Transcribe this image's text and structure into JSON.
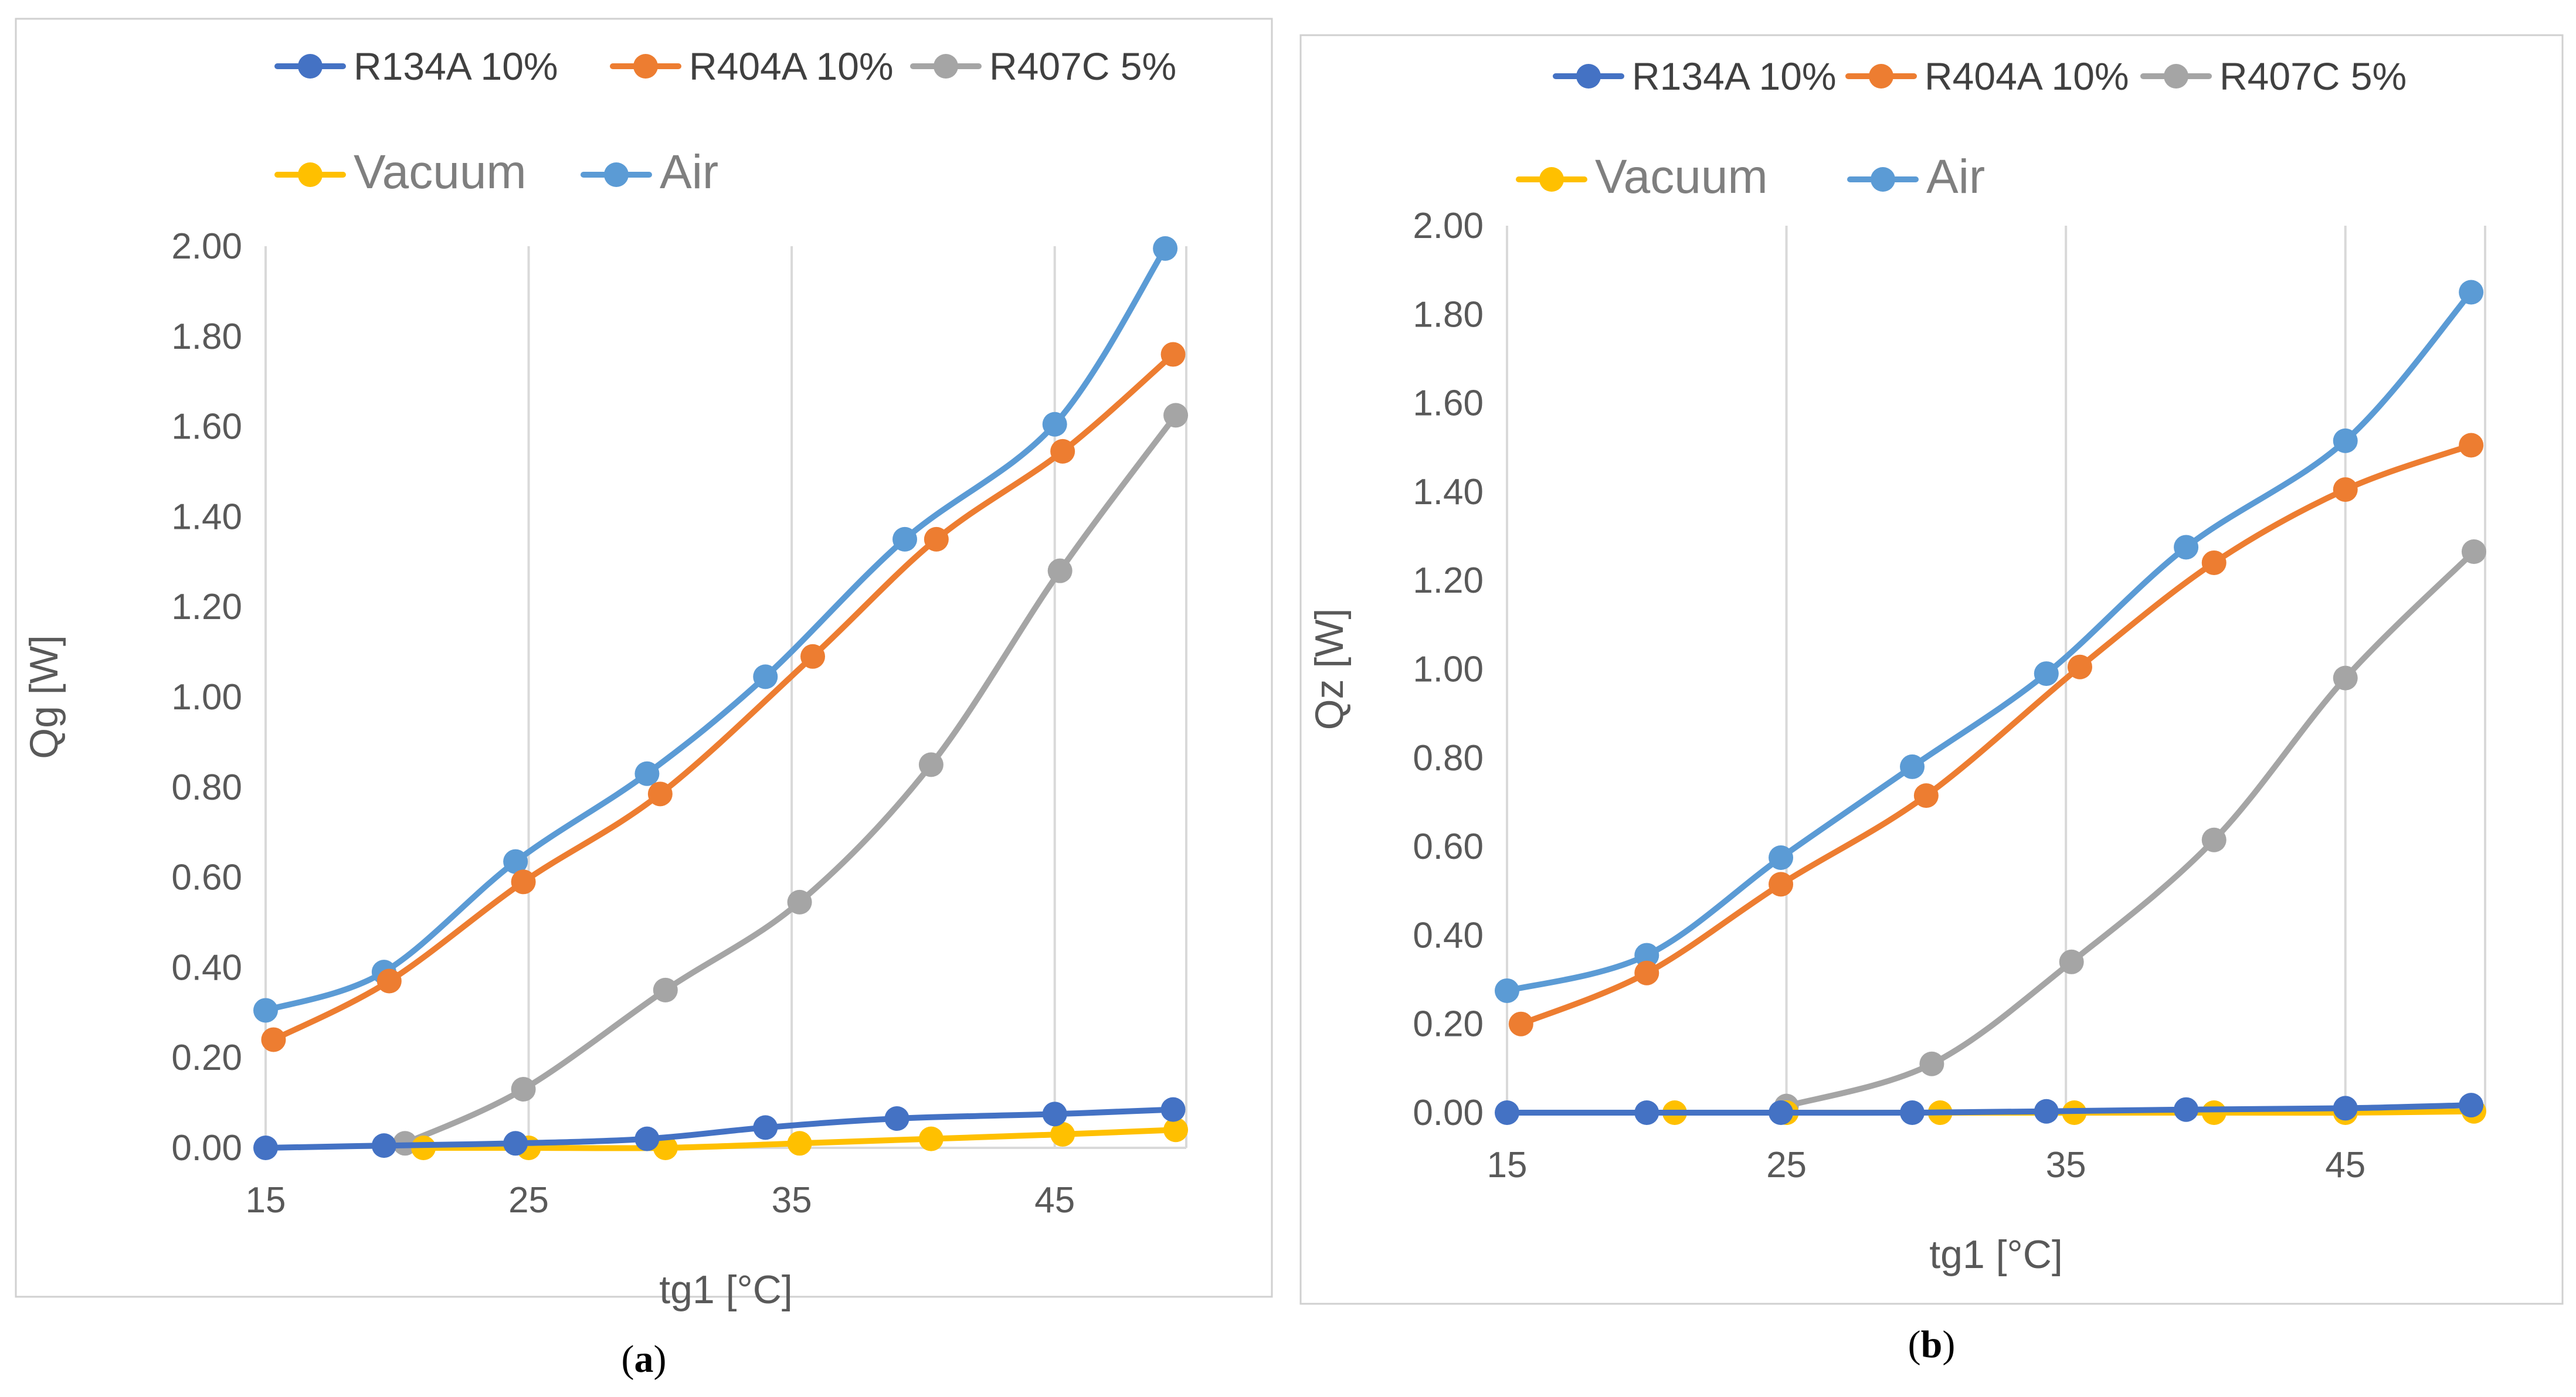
{
  "colors": {
    "R134A 10%": "#4472C4",
    "R404A 10%": "#ED7D31",
    "R407C 5%": "#A5A5A5",
    "Vacuum": "#FFC000",
    "Air": "#5B9BD5",
    "grid": "#d9d9d9",
    "panel_border": "#d0d0d0"
  },
  "chart_data": [
    {
      "type": "line",
      "caption_letter": "a",
      "xlabel": "tg1 [°C]",
      "ylabel": "Qg [W]",
      "xlim": [
        15,
        50
      ],
      "ylim": [
        0,
        2
      ],
      "xticks": [
        "15",
        "25",
        "35",
        "45"
      ],
      "yticks": [
        "0.00",
        "0.20",
        "0.40",
        "0.60",
        "0.80",
        "1.00",
        "1.20",
        "1.40",
        "1.60",
        "1.80",
        "2.00"
      ],
      "grid": "vertical",
      "legend": "top",
      "series": [
        {
          "name": "R134A 10%",
          "points": [
            [
              15,
              0.0
            ],
            [
              19.5,
              0.005
            ],
            [
              24.5,
              0.01
            ],
            [
              29.5,
              0.02
            ],
            [
              34,
              0.045
            ],
            [
              39,
              0.065
            ],
            [
              45,
              0.075
            ],
            [
              49.5,
              0.085
            ]
          ]
        },
        {
          "name": "R404A 10%",
          "points": [
            [
              15.3,
              0.24
            ],
            [
              19.7,
              0.37
            ],
            [
              24.8,
              0.59
            ],
            [
              30,
              0.785
            ],
            [
              35.8,
              1.09
            ],
            [
              40.5,
              1.35
            ],
            [
              45.3,
              1.545
            ],
            [
              49.5,
              1.76
            ]
          ]
        },
        {
          "name": "R407C 5%",
          "points": [
            [
              20.3,
              0.01
            ],
            [
              24.8,
              0.13
            ],
            [
              30.2,
              0.35
            ],
            [
              35.3,
              0.545
            ],
            [
              40.3,
              0.85
            ],
            [
              45.2,
              1.28
            ],
            [
              49.6,
              1.625
            ]
          ]
        },
        {
          "name": "Vacuum",
          "points": [
            [
              21,
              0.0
            ],
            [
              25,
              0.0
            ],
            [
              30.2,
              0.0
            ],
            [
              35.3,
              0.01
            ],
            [
              40.3,
              0.02
            ],
            [
              45.3,
              0.03
            ],
            [
              49.6,
              0.04
            ]
          ]
        },
        {
          "name": "Air",
          "points": [
            [
              15,
              0.305
            ],
            [
              19.5,
              0.39
            ],
            [
              24.5,
              0.635
            ],
            [
              29.5,
              0.83
            ],
            [
              34,
              1.045
            ],
            [
              39.3,
              1.35
            ],
            [
              45,
              1.605
            ],
            [
              49.2,
              1.995
            ]
          ]
        }
      ]
    },
    {
      "type": "line",
      "caption_letter": "b",
      "xlabel": "tg1 [°C]",
      "ylabel": "Qz [W]",
      "xlim": [
        15,
        50
      ],
      "ylim": [
        0,
        2
      ],
      "xticks": [
        "15",
        "25",
        "35",
        "45"
      ],
      "yticks": [
        "0.00",
        "0.20",
        "0.40",
        "0.60",
        "0.80",
        "1.00",
        "1.20",
        "1.40",
        "1.60",
        "1.80",
        "2.00"
      ],
      "grid": "vertical",
      "legend": "top",
      "series": [
        {
          "name": "R134A 10%",
          "points": [
            [
              15,
              0.0
            ],
            [
              20,
              0.0
            ],
            [
              24.8,
              0.0
            ],
            [
              29.5,
              0.0
            ],
            [
              34.3,
              0.003
            ],
            [
              39.3,
              0.007
            ],
            [
              45,
              0.01
            ],
            [
              49.5,
              0.017
            ]
          ]
        },
        {
          "name": "R404A 10%",
          "points": [
            [
              15.5,
              0.2
            ],
            [
              20,
              0.315
            ],
            [
              24.8,
              0.515
            ],
            [
              30,
              0.715
            ],
            [
              35.5,
              1.005
            ],
            [
              40.3,
              1.24
            ],
            [
              45,
              1.405
            ],
            [
              49.5,
              1.505
            ]
          ]
        },
        {
          "name": "R407C 5%",
          "points": [
            [
              25,
              0.015
            ],
            [
              30.2,
              0.11
            ],
            [
              35.2,
              0.34
            ],
            [
              40.3,
              0.615
            ],
            [
              45,
              0.98
            ],
            [
              49.6,
              1.265
            ]
          ]
        },
        {
          "name": "Vacuum",
          "points": [
            [
              21,
              0.0
            ],
            [
              25,
              0.0
            ],
            [
              30.5,
              0.0
            ],
            [
              35.3,
              0.0
            ],
            [
              40.3,
              0.0
            ],
            [
              45,
              0.0
            ],
            [
              49.6,
              0.003
            ]
          ]
        },
        {
          "name": "Air",
          "points": [
            [
              15,
              0.275
            ],
            [
              20,
              0.355
            ],
            [
              24.8,
              0.575
            ],
            [
              29.5,
              0.78
            ],
            [
              34.3,
              0.99
            ],
            [
              39.3,
              1.275
            ],
            [
              45,
              1.515
            ],
            [
              49.5,
              1.85
            ]
          ]
        }
      ]
    }
  ]
}
